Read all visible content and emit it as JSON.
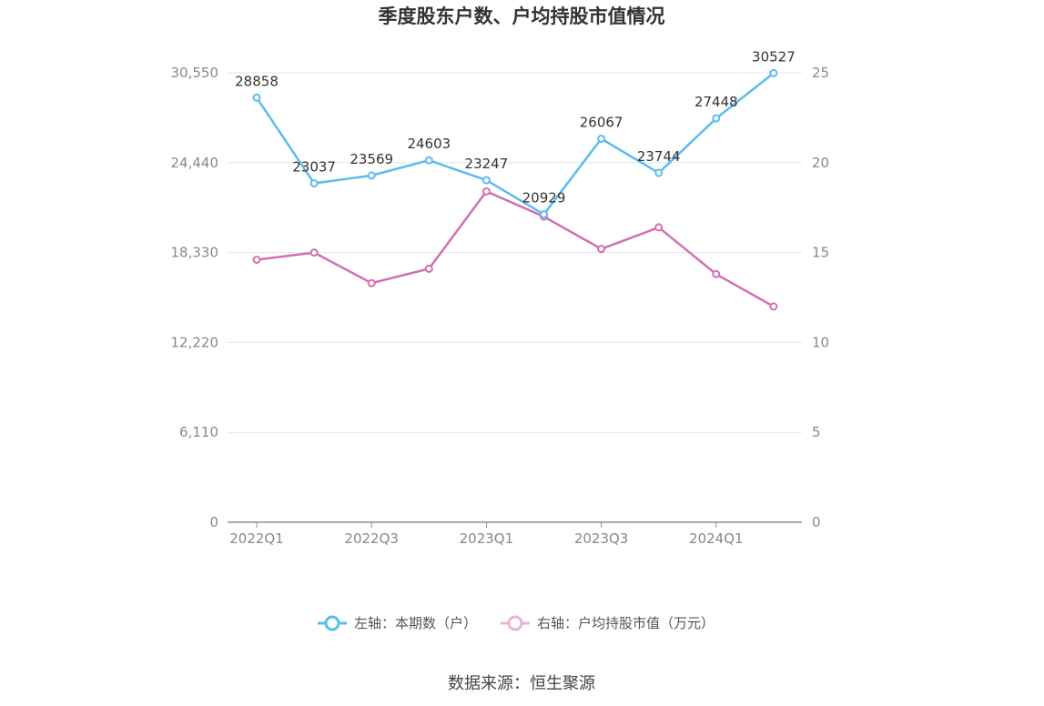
{
  "chart_data": {
    "type": "line",
    "title": "季度股东户数、户均持股市值情况",
    "categories": [
      "2022Q1",
      "2022Q2",
      "2022Q3",
      "2022Q4",
      "2023Q1",
      "2023Q2",
      "2023Q3",
      "2023Q4",
      "2024Q1",
      "2024Q2"
    ],
    "x_tick_labels": [
      "2022Q1",
      "2022Q3",
      "2023Q1",
      "2023Q3",
      "2024Q1"
    ],
    "left_axis": {
      "min": 0,
      "max": 30550,
      "ticks": [
        0,
        6110,
        12220,
        18330,
        24440,
        30550
      ],
      "tick_labels": [
        "0",
        "6,110",
        "12,220",
        "18,330",
        "24,440",
        "30,550"
      ]
    },
    "right_axis": {
      "min": 0,
      "max": 25,
      "ticks": [
        0,
        5,
        10,
        15,
        20,
        25
      ],
      "tick_labels": [
        "0",
        "5",
        "10",
        "15",
        "20",
        "25"
      ]
    },
    "series": [
      {
        "name": "左轴：本期数（户）",
        "axis": "left",
        "color": "#5bbcee",
        "values": [
          28858,
          23037,
          23569,
          24603,
          23247,
          20929,
          26067,
          23744,
          27448,
          30527
        ],
        "labels": [
          "28858",
          "23037",
          "23569",
          "24603",
          "23247",
          "20929",
          "26067",
          "23744",
          "27448",
          "30527"
        ]
      },
      {
        "name": "右轴：户均持股市值（万元）",
        "axis": "right",
        "color": "#d26fb1",
        "values": [
          14.6,
          15.0,
          13.3,
          14.1,
          18.4,
          17.0,
          15.2,
          16.4,
          13.8,
          12.0
        ]
      }
    ],
    "grid": true,
    "legend_position": "bottom"
  },
  "legend": {
    "left_label": "左轴：本期数（户）",
    "right_label": "右轴：户均持股市值（万元）"
  },
  "source": "数据来源：恒生聚源"
}
